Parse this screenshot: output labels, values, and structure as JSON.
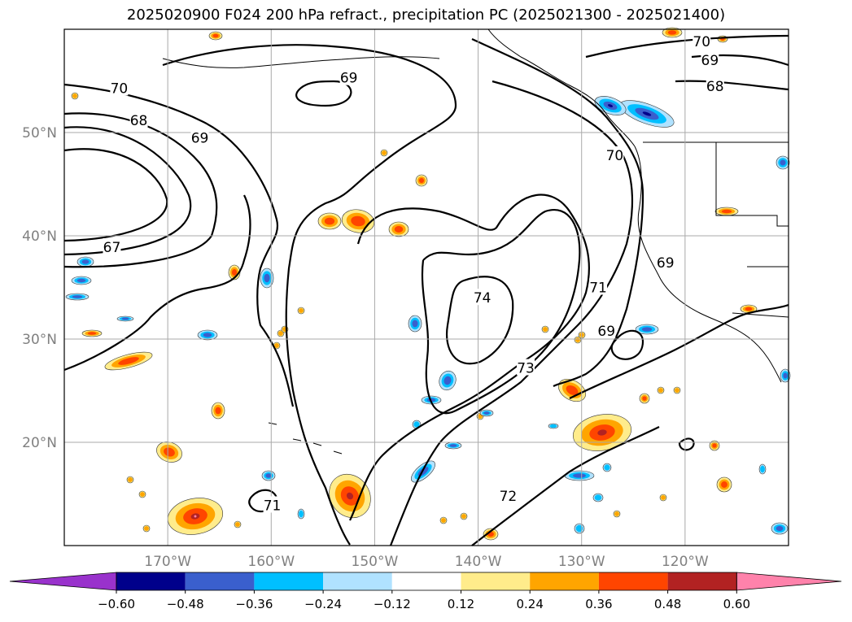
{
  "title": "2025020900 F024 200 hPa refract., precipitation PC (2025021300 - 2025021400)",
  "map": {
    "lon_range": [
      -180,
      -110
    ],
    "lat_range": [
      10,
      60
    ],
    "lat_labels": [
      "50°N",
      "40°N",
      "30°N",
      "20°N"
    ],
    "lon_labels": [
      "170°W",
      "160°W",
      "150°W",
      "140°W",
      "130°W",
      "120°W"
    ],
    "contour_color": "#000000",
    "grid_color": "#aaaaaa",
    "contour_labels": [
      {
        "text": "70",
        "lon": -174.7,
        "lat": 54.3
      },
      {
        "text": "68",
        "lon": -172.8,
        "lat": 51.2
      },
      {
        "text": "69",
        "lon": -166.9,
        "lat": 49.5
      },
      {
        "text": "67",
        "lon": -175.4,
        "lat": 38.9
      },
      {
        "text": "69",
        "lon": -152.5,
        "lat": 55.3
      },
      {
        "text": "70",
        "lon": -118.4,
        "lat": 58.8
      },
      {
        "text": "69",
        "lon": -117.6,
        "lat": 57.0
      },
      {
        "text": "68",
        "lon": -117.1,
        "lat": 54.5
      },
      {
        "text": "70",
        "lon": -126.8,
        "lat": 47.8
      },
      {
        "text": "69",
        "lon": -121.9,
        "lat": 37.4
      },
      {
        "text": "74",
        "lon": -139.6,
        "lat": 34.0
      },
      {
        "text": "71",
        "lon": -128.4,
        "lat": 35.0
      },
      {
        "text": "69",
        "lon": -127.6,
        "lat": 30.8
      },
      {
        "text": "73",
        "lon": -135.4,
        "lat": 27.2
      },
      {
        "text": "72",
        "lon": -137.1,
        "lat": 14.8
      },
      {
        "text": "71",
        "lon": -159.9,
        "lat": 13.9
      }
    ]
  },
  "colorbar": {
    "tick_labels": [
      "−0.60",
      "−0.48",
      "−0.36",
      "−0.24",
      "−0.12",
      "0.12",
      "0.24",
      "0.36",
      "0.48",
      "0.60"
    ],
    "colors": [
      "#9932cc",
      "#00008b",
      "#3a5fcd",
      "#00bfff",
      "#b0e2ff",
      "#ffffff",
      "#ffec8b",
      "#ffa500",
      "#ff4500",
      "#b22222",
      "#ff82ab"
    ]
  }
}
